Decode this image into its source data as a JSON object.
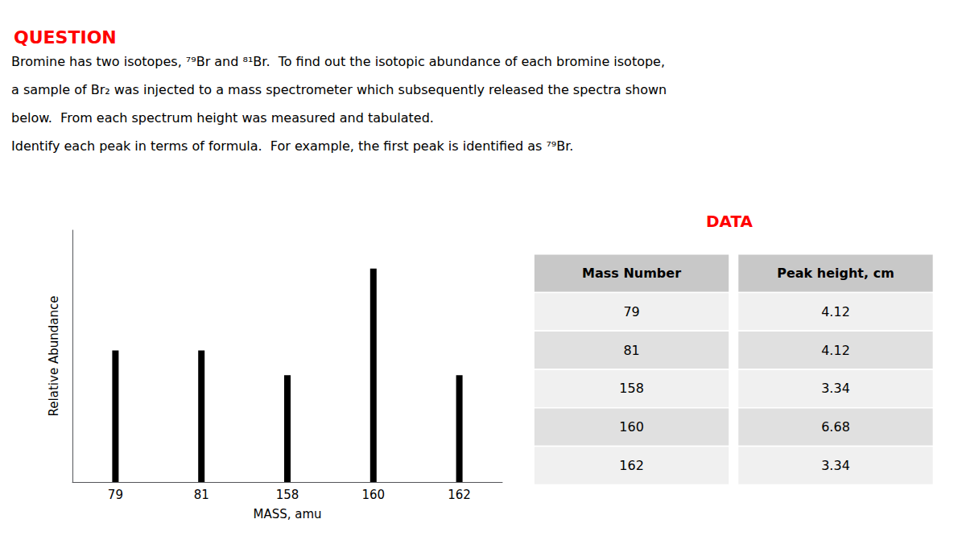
{
  "chart_data": {
    "type": "bar",
    "title": "QUESTION",
    "annotations": [
      "Bromine has two isotopes, ⁷⁹Br and ⁸¹Br.  To find out the isotopic abundance of each bromine isotope,",
      "a sample of Br₂ was injected to a mass spectrometer which subsequently released the spectra shown",
      "below.  From each spectrum height was measured and tabulated.",
      "Identify each peak in terms of formula.  For example, the first peak is identified as ⁷⁹Br."
    ],
    "categories": [
      "79",
      "81",
      "158",
      "160",
      "162"
    ],
    "values": [
      0.6167664670658682,
      0.6167664670658682,
      0.5,
      1,
      0.5
    ],
    "color": "#000000",
    "xlabel": "MASS, amu",
    "ylabel": "Relative Abundance",
    "ylim": [
      0,
      1.18
    ],
    "yticks": [],
    "tick_labels": "x",
    "grid": false,
    "table": {
      "title": "DATA",
      "headers": [
        "Mass Number",
        "Peak height, cm"
      ],
      "rows": [
        [
          "79",
          "4.12"
        ],
        [
          "81",
          "4.12"
        ],
        [
          "158",
          "3.34"
        ],
        [
          "160",
          "6.68"
        ],
        [
          "162",
          "3.34"
        ]
      ]
    }
  }
}
